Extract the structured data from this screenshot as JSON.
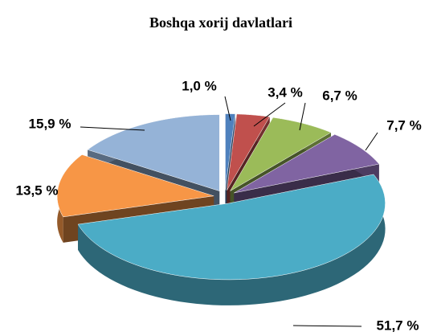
{
  "chart_data": {
    "type": "pie",
    "title": "Boshqa xorij davlatlari",
    "values": [
      1.0,
      3.4,
      6.7,
      7.7,
      51.7,
      13.5,
      15.9
    ],
    "value_labels": [
      "1,0 %",
      "3,4 %",
      "6,7 %",
      "7,7 %",
      "51,7 %",
      "13,5 %",
      "15,9 %"
    ],
    "colors": [
      "#4f81bd",
      "#c0504d",
      "#9bbb59",
      "#8064a2",
      "#4bacc6",
      "#f79646",
      "#95b3d7"
    ]
  }
}
